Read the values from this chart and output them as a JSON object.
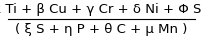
{
  "numerator": "( α Ti + β Cu + γ Cr + δ Ni + Φ Sb )",
  "denominator": "( ξ S + η P + θ C + μ Mn )",
  "line_color": "#000000",
  "text_color": "#000000",
  "background_color": "#ffffff",
  "fontsize": 9.5
}
